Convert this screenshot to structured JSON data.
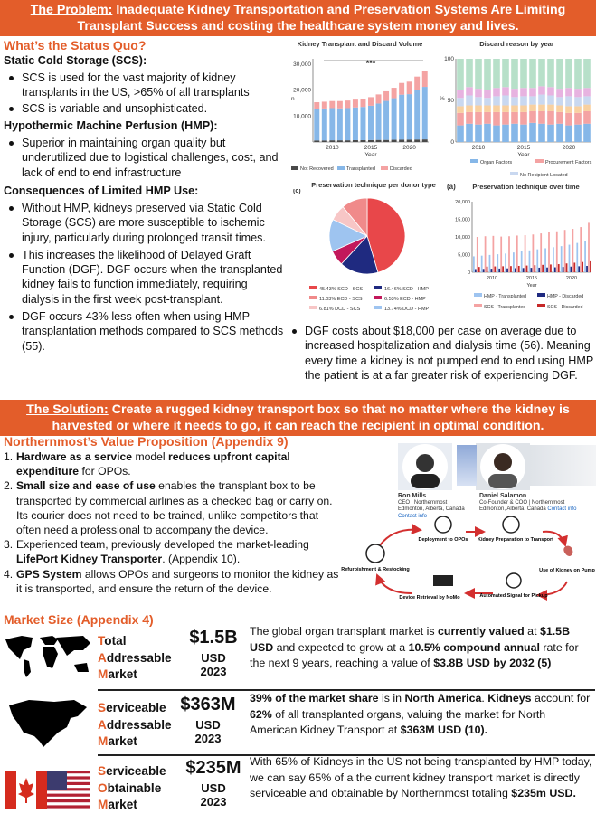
{
  "problem_banner": {
    "lead": "The Problem:",
    "text": "Inadequate Kidney Transportation and Preservation Systems Are Limiting Transplant Success and costing the healthcare system money and lives."
  },
  "status_quo": {
    "title": "What’s the Status Quo?",
    "scs_heading": "Static Cold Storage (SCS):",
    "scs_bullets": [
      "SCS is used for the vast majority of kidney transplants in the US, >65% of all transplants",
      "SCS is variable and unsophisticated."
    ],
    "hmp_heading": "Hypothermic Machine Perfusion (HMP):",
    "hmp_bullets": [
      "Superior in maintaining organ quality but underutilized due to logistical challenges, cost, and lack of end to end infrastructure"
    ],
    "consequences_heading": "Consequences of Limited HMP Use:",
    "consequences_bullets": [
      "Without HMP, kidneys preserved via Static Cold Storage (SCS) are more susceptible to ischemic injury, particularly during prolonged transit times.",
      "This increases the likelihood of Delayed Graft Function (DGF). DGF occurs when the transplanted kidney fails to function immediately, requiring dialysis in the first week post-transplant.",
      "DGF occurs 43% less often when using HMP transplantation methods compared to SCS methods (55)."
    ],
    "dgf_cost_bullet": "DGF costs about $18,000 per case on average due to increased hospitalization and dialysis time (56). Meaning every time a kidney is not pumped end to end using HMP the patient is at a far greater risk of experiencing DGF."
  },
  "chart_data": [
    {
      "type": "bar",
      "title": "Kidney Transplant and Discard Volume",
      "ylabel": "n",
      "xlabel": "Year",
      "x": [
        2008,
        2009,
        2010,
        2011,
        2012,
        2013,
        2014,
        2015,
        2016,
        2017,
        2018,
        2019,
        2020,
        2021,
        2022
      ],
      "xticks": [
        "2010",
        "2015",
        "2020"
      ],
      "yticks": [
        "10,000",
        "20,000",
        "30,000"
      ],
      "ylim": [
        0,
        32000
      ],
      "annotation": "***",
      "series": [
        {
          "name": "Not Recovered",
          "values": [
            600,
            600,
            650,
            650,
            650,
            700,
            700,
            750,
            800,
            800,
            850,
            900,
            900,
            950,
            1000
          ]
        },
        {
          "name": "Transplanted",
          "values": [
            12200,
            12300,
            12400,
            12300,
            12400,
            12600,
            12800,
            13200,
            14000,
            15000,
            16000,
            17300,
            17500,
            19000,
            20200
          ]
        },
        {
          "name": "Discarded",
          "values": [
            2500,
            2600,
            2700,
            2800,
            2900,
            3000,
            3200,
            3300,
            3500,
            3700,
            4000,
            4500,
            4800,
            5200,
            6000
          ]
        }
      ],
      "colors": [
        "#4a4a4a",
        "#86b7e8",
        "#f4a3a3"
      ],
      "legend": "bottom"
    },
    {
      "type": "bar",
      "title": "Discard reason by year",
      "ylabel": "%",
      "xlabel": "Year",
      "x": [
        2008,
        2009,
        2010,
        2011,
        2012,
        2013,
        2014,
        2015,
        2016,
        2017,
        2018,
        2019,
        2020,
        2021,
        2022
      ],
      "xticks": [
        "2010",
        "2015",
        "2020"
      ],
      "yticks": [
        "0",
        "50",
        "100"
      ],
      "ylim": [
        0,
        100
      ],
      "series": [
        {
          "name": "Organ Factors",
          "values": [
            20,
            22,
            21,
            22,
            20,
            21,
            22,
            21,
            23,
            22,
            21,
            22,
            20,
            21,
            22
          ]
        },
        {
          "name": "Procurement Factors",
          "values": [
            15,
            14,
            15,
            14,
            16,
            15,
            14,
            15,
            14,
            15,
            16,
            14,
            15,
            14,
            15
          ]
        },
        {
          "name": "No Recipient Located",
          "values": [
            10,
            12,
            10,
            9,
            11,
            12,
            10,
            11,
            10,
            12,
            11,
            10,
            12,
            11,
            10
          ]
        }
      ],
      "colors": [
        "#86b7e8",
        "#f4a3a3",
        "#c9d8f0"
      ],
      "legend": "bottom"
    },
    {
      "type": "pie",
      "panel_label": "(c)",
      "title": "Preservation technique per donor type",
      "labels": [
        "SCD - SCS",
        "ECD - SCS",
        "DCD - SCS",
        "SCD - HMP",
        "ECD - HMP",
        "DCD - HMP"
      ],
      "values": [
        45.43,
        11.03,
        6.81,
        16.46,
        6.53,
        13.74
      ],
      "value_labels": [
        "45.43%",
        "11.03%",
        "6.81%",
        "16.46%",
        "6.53%",
        "13.74%"
      ],
      "colors": [
        "#e8474a",
        "#f08a8a",
        "#f7c6c6",
        "#1f2a80",
        "#c2185b",
        "#9ec4f0"
      ],
      "legend": "bottom"
    },
    {
      "type": "bar",
      "panel_label": "(a)",
      "title": "Preservation technique over time",
      "xlabel": "Year",
      "x": [
        2008,
        2009,
        2010,
        2011,
        2012,
        2013,
        2014,
        2015,
        2016,
        2017,
        2018,
        2019,
        2020,
        2021,
        2022
      ],
      "xticks": [
        "2010",
        "2015",
        "2020"
      ],
      "yticks": [
        "0",
        "5,000",
        "10,000",
        "15,000",
        "20,000"
      ],
      "ylim": [
        0,
        20000
      ],
      "series": [
        {
          "name": "HMP - Transplanted",
          "values": [
            4500,
            4700,
            4900,
            5100,
            5300,
            5600,
            5900,
            6200,
            6500,
            6800,
            7100,
            7400,
            7800,
            8300,
            8800
          ]
        },
        {
          "name": "HMP - Discarded",
          "values": [
            900,
            950,
            1000,
            1050,
            1100,
            1150,
            1200,
            1250,
            1300,
            1350,
            1400,
            1500,
            1600,
            1700,
            1800
          ]
        },
        {
          "name": "SCS - Transplanted",
          "values": [
            10000,
            10200,
            10300,
            10100,
            10200,
            10400,
            10500,
            10700,
            11000,
            11300,
            11600,
            12000,
            12300,
            12800,
            14000
          ]
        },
        {
          "name": "SCS - Discarded",
          "values": [
            1500,
            1600,
            1650,
            1700,
            1750,
            1800,
            1900,
            2000,
            2100,
            2200,
            2300,
            2500,
            2700,
            2900,
            3100
          ]
        }
      ],
      "colors": [
        "#9ec4f0",
        "#1f2a80",
        "#f4a3a3",
        "#c62828"
      ],
      "legend": "bottom"
    }
  ],
  "solution_banner": {
    "lead": "The Solution:",
    "text": "Create a rugged kidney transport box so that no matter where the kidney is harvested or where it needs to go, it can reach the recipient in optimal condition."
  },
  "value_prop": {
    "title": "Northernmost’s Value Proposition (Appendix 9)",
    "items": [
      {
        "num": "1.",
        "parts": [
          {
            "b": true,
            "t": "Hardware as a service"
          },
          {
            "b": false,
            "t": " model "
          },
          {
            "b": true,
            "t": "reduces upfront capital expenditure"
          },
          {
            "b": false,
            "t": " for OPOs."
          }
        ]
      },
      {
        "num": "2.",
        "parts": [
          {
            "b": true,
            "t": "Small size and ease of use"
          },
          {
            "b": false,
            "t": " enables the transplant box to be transported by commercial airlines as a checked bag or carry on. Its courier does not need to be trained, unlike competitors that often need a professional to accompany the device."
          }
        ]
      },
      {
        "num": "3.",
        "parts": [
          {
            "b": false,
            "t": "Experienced team, previously developed the market-leading "
          },
          {
            "b": true,
            "t": "LifePort Kidney Transporter"
          },
          {
            "b": false,
            "t": ". (Appendix 10)."
          }
        ]
      },
      {
        "num": "4.",
        "parts": [
          {
            "b": true,
            "t": "GPS System"
          },
          {
            "b": false,
            "t": " allows OPOs and surgeons to monitor the kidney as it is transported, and ensure the return of the device."
          }
        ]
      }
    ]
  },
  "team": [
    {
      "name": "Ron Mills",
      "role": "CEO | Northernmost",
      "location": "Edmonton, Alberta, Canada",
      "contact": "Contact info"
    },
    {
      "name": "Daniel Salamon",
      "role": "Co-Founder & COO | Northernmost",
      "location": "Edmonton, Alberta, Canada",
      "contact": "Contact info"
    }
  ],
  "cycle": {
    "steps": [
      "Deployment to OPOs",
      "Kidney Preparation to Transport",
      "Use of Kidney on Pump",
      "Automated Signal for Pickup",
      "Device Retrieval by NoMo",
      "Refurbishment & Restocking"
    ]
  },
  "market": {
    "title": "Market Size  (Appendix 4)",
    "rows": [
      {
        "words": [
          [
            "T",
            "otal"
          ],
          [
            "A",
            "ddressable"
          ],
          [
            "M",
            "arket"
          ]
        ],
        "value": "$1.5B",
        "currency": "USD",
        "year": "2023",
        "desc": [
          {
            "b": false,
            "t": "The global organ transplant market is "
          },
          {
            "b": true,
            "t": "currently valued"
          },
          {
            "b": false,
            "t": " at "
          },
          {
            "b": true,
            "t": "$1.5B USD"
          },
          {
            "b": false,
            "t": " and expected to grow at a "
          },
          {
            "b": true,
            "t": "10.5% compound annual"
          },
          {
            "b": false,
            "t": " rate for the next 9 years, reaching a value of "
          },
          {
            "b": true,
            "t": "$3.8B USD by 2032 (5)"
          }
        ]
      },
      {
        "words": [
          [
            "S",
            "erviceable"
          ],
          [
            "A",
            "ddressable"
          ],
          [
            "M",
            "arket"
          ]
        ],
        "value": "$363M",
        "currency": "USD",
        "year": "2023",
        "desc": [
          {
            "b": true,
            "t": "39% of the market share"
          },
          {
            "b": false,
            "t": " is in "
          },
          {
            "b": true,
            "t": "North America"
          },
          {
            "b": false,
            "t": ". "
          },
          {
            "b": true,
            "t": "Kidneys"
          },
          {
            "b": false,
            "t": " account for "
          },
          {
            "b": true,
            "t": "62%"
          },
          {
            "b": false,
            "t": " of all transplanted organs, valuing the market for North American Kidney Transport at "
          },
          {
            "b": true,
            "t": "$363M USD (10)."
          }
        ]
      },
      {
        "words": [
          [
            "S",
            "erviceable"
          ],
          [
            "O",
            "btainable"
          ],
          [
            "M",
            "arket"
          ]
        ],
        "value": "$235M",
        "currency": "USD",
        "year": "2023",
        "desc": [
          {
            "b": false,
            "t": "With 65% of Kidneys in the US not being transplanted by HMP today, we can say 65% of a the current kidney transport market is directly serviceable and obtainable by Northernmost totaling "
          },
          {
            "b": true,
            "t": "$235m USD."
          }
        ]
      }
    ]
  }
}
